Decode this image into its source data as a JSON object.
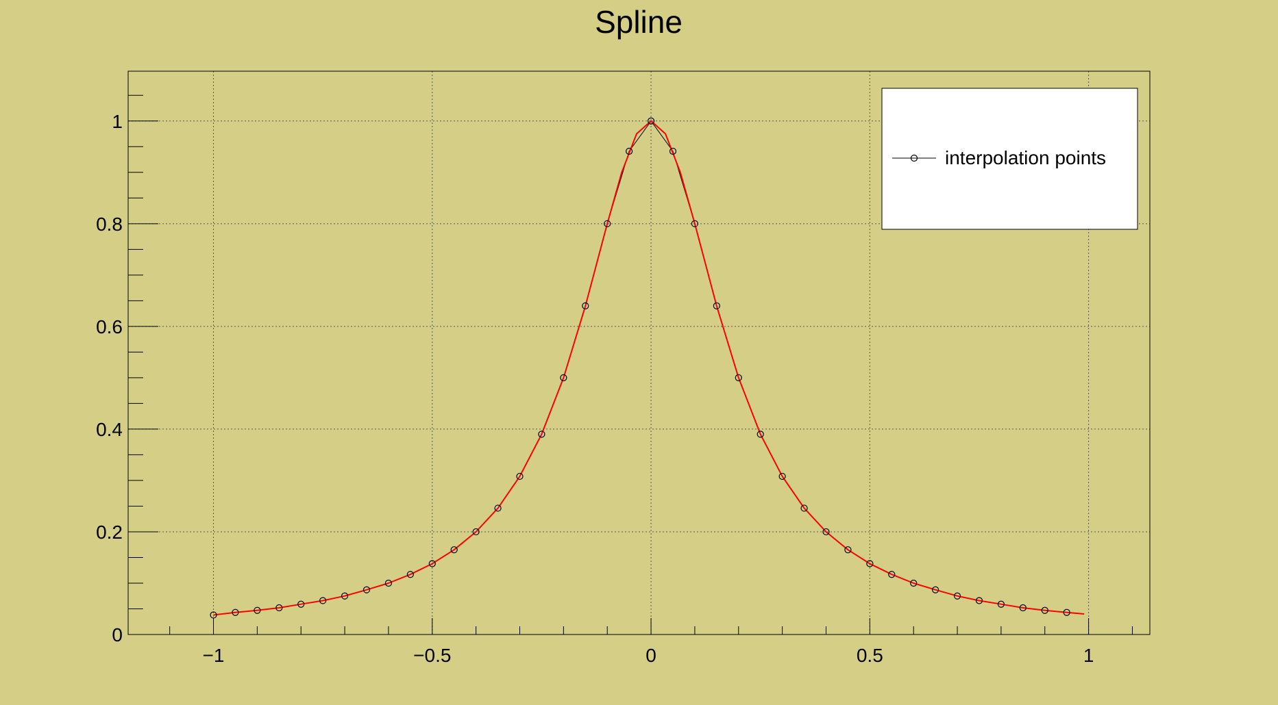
{
  "chart_data": {
    "type": "line",
    "title": "Spline",
    "xlabel": "",
    "ylabel": "",
    "xlim": [
      -1.195,
      1.14
    ],
    "ylim": [
      0,
      1.097
    ],
    "grid": true,
    "legend_position": "top-right",
    "x_ticks": [
      -1,
      -0.5,
      0,
      0.5,
      1
    ],
    "x_tick_labels": [
      "−1",
      "−0.5",
      "0",
      "0.5",
      "1"
    ],
    "y_ticks": [
      0,
      0.2,
      0.4,
      0.6,
      0.8,
      1
    ],
    "y_tick_labels": [
      "0",
      "0.2",
      "0.4",
      "0.6",
      "0.8",
      "1"
    ],
    "legend": [
      {
        "label": "interpolation points"
      }
    ],
    "series": [
      {
        "name": "interpolation points",
        "color": "#000000",
        "marker": "open-circle",
        "x": [
          -1,
          -0.95,
          -0.9,
          -0.85,
          -0.8,
          -0.75,
          -0.7,
          -0.65,
          -0.6,
          -0.55,
          -0.5,
          -0.45,
          -0.4,
          -0.35,
          -0.3,
          -0.25,
          -0.2,
          -0.15,
          -0.1,
          -0.05,
          0,
          0.05,
          0.1,
          0.15,
          0.2,
          0.25,
          0.3,
          0.35,
          0.4,
          0.45,
          0.5,
          0.55,
          0.6,
          0.65,
          0.7,
          0.75,
          0.8,
          0.85,
          0.9,
          0.95
        ],
        "y": [
          0.038,
          0.043,
          0.047,
          0.052,
          0.059,
          0.066,
          0.075,
          0.087,
          0.1,
          0.117,
          0.138,
          0.165,
          0.2,
          0.246,
          0.308,
          0.39,
          0.5,
          0.64,
          0.8,
          0.941,
          1.0,
          0.941,
          0.8,
          0.64,
          0.5,
          0.39,
          0.308,
          0.246,
          0.2,
          0.165,
          0.138,
          0.117,
          0.1,
          0.087,
          0.075,
          0.066,
          0.059,
          0.052,
          0.047,
          0.043
        ]
      },
      {
        "color": "#ff0000",
        "x": [
          -1,
          -0.95,
          -0.9,
          -0.85,
          -0.8,
          -0.75,
          -0.7,
          -0.65,
          -0.6,
          -0.55,
          -0.5,
          -0.45,
          -0.4,
          -0.35,
          -0.3,
          -0.25,
          -0.2,
          -0.15,
          -0.1,
          -0.067,
          -0.033,
          0,
          0.033,
          0.067,
          0.1,
          0.15,
          0.2,
          0.25,
          0.3,
          0.35,
          0.4,
          0.45,
          0.5,
          0.55,
          0.6,
          0.65,
          0.7,
          0.75,
          0.8,
          0.85,
          0.9,
          0.95,
          0.99
        ],
        "y": [
          0.038,
          0.043,
          0.047,
          0.052,
          0.059,
          0.066,
          0.075,
          0.087,
          0.1,
          0.117,
          0.138,
          0.165,
          0.2,
          0.246,
          0.308,
          0.39,
          0.5,
          0.64,
          0.8,
          0.9,
          0.975,
          1.0,
          0.975,
          0.9,
          0.8,
          0.64,
          0.5,
          0.39,
          0.308,
          0.246,
          0.2,
          0.165,
          0.138,
          0.117,
          0.1,
          0.087,
          0.075,
          0.066,
          0.059,
          0.052,
          0.047,
          0.043,
          0.04
        ]
      }
    ]
  }
}
